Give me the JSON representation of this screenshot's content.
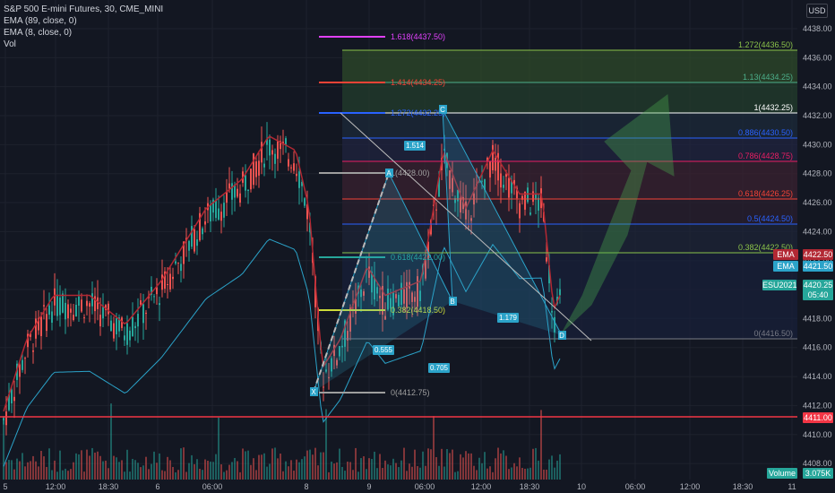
{
  "legend": {
    "symbol": "S&P 500 E-mini Futures, 30, CME_MINI",
    "ema89": "EMA (89, close, 0)",
    "ema8": "EMA (8, close, 0)",
    "vol": "Vol"
  },
  "currency": "USD",
  "axis": {
    "price_ticks": [
      "4438.00",
      "4436.00",
      "4434.00",
      "4432.00",
      "4430.00",
      "4428.00",
      "4426.00",
      "4424.00",
      "4422.00",
      "4420.00",
      "4418.00",
      "4416.00",
      "4414.00",
      "4412.00",
      "4410.00",
      "4408.00"
    ],
    "time_ticks": [
      "5",
      "12:00",
      "18:30",
      "6",
      "06:00",
      "8",
      "9",
      "06:00",
      "12:00",
      "18:30",
      "10",
      "06:00",
      "12:00",
      "18:30",
      "11"
    ]
  },
  "price_tags": {
    "ema1_label": "EMA",
    "ema1_value": "4422.50",
    "ema2_label": "EMA",
    "ema2_value": "4421.50",
    "symbol_label": "ESU2021",
    "last_value": "4420.25",
    "countdown": "05:40",
    "level_value": "4411.00",
    "volume_label": "Volume",
    "volume_value": "3.075K"
  },
  "fib_left": [
    "1.618(4437.50)",
    "1.414(4434.25)",
    "1.272(4432.25)",
    "1(4428.00)",
    "0.618(4422.00)",
    "0.382(4418.50)",
    "0(4412.75)"
  ],
  "fib_right": [
    "1.272(4436.50)",
    "1.13(4434.25)",
    "1(4432.25)",
    "0.886(4430.50)",
    "0.786(4428.75)",
    "0.618(4426.25)",
    "0.5(4424.50)",
    "0.382(4422.50)",
    "0(4416.50)"
  ],
  "pattern": {
    "points": [
      "X",
      "A",
      "B",
      "C",
      "D"
    ],
    "ratios": [
      "1.514",
      "0.555",
      "0.705",
      "1.179"
    ]
  },
  "colors": {
    "bg": "#131722",
    "up": "#26a69a",
    "down": "#ef5350",
    "ema89": "#2ba3c9",
    "ema8": "#b22833",
    "arrow": "#4caf50"
  }
}
